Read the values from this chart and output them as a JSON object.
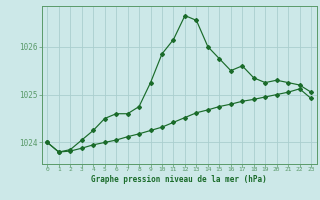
{
  "title": "Graphe pression niveau de la mer (hPa)",
  "background_color": "#cce8e8",
  "grid_color": "#aacece",
  "line_color": "#1a6b2a",
  "spine_color": "#5a9a6a",
  "x_ticks": [
    0,
    1,
    2,
    3,
    4,
    5,
    6,
    7,
    8,
    9,
    10,
    11,
    12,
    13,
    14,
    15,
    16,
    17,
    18,
    19,
    20,
    21,
    22,
    23
  ],
  "y_ticks": [
    1024,
    1025,
    1026
  ],
  "ylim": [
    1023.55,
    1026.85
  ],
  "xlim": [
    -0.5,
    23.5
  ],
  "series1": [
    1024.0,
    1023.8,
    1023.85,
    1024.05,
    1024.25,
    1024.5,
    1024.6,
    1024.6,
    1024.75,
    1025.25,
    1025.85,
    1026.15,
    1026.65,
    1026.55,
    1026.0,
    1025.75,
    1025.5,
    1025.6,
    1025.35,
    1025.25,
    1025.3,
    1025.25,
    1025.2,
    1025.05
  ],
  "series2": [
    1024.0,
    1023.8,
    1023.82,
    1023.88,
    1023.95,
    1024.0,
    1024.05,
    1024.12,
    1024.18,
    1024.25,
    1024.32,
    1024.42,
    1024.52,
    1024.62,
    1024.68,
    1024.75,
    1024.8,
    1024.86,
    1024.9,
    1024.95,
    1025.0,
    1025.05,
    1025.12,
    1024.92
  ]
}
